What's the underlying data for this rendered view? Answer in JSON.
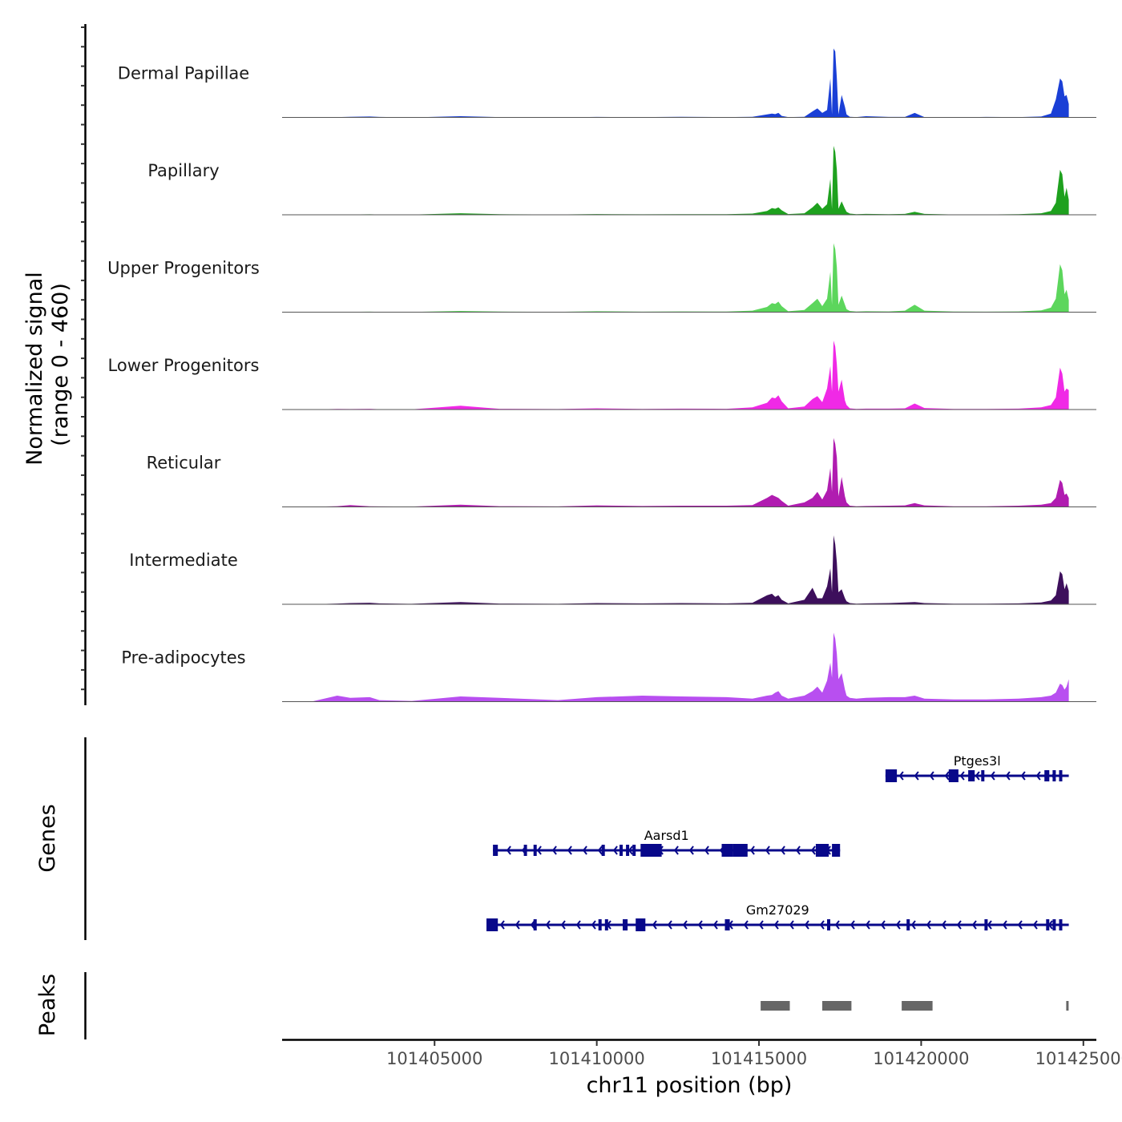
{
  "chart_data": {
    "type": "area",
    "title": "",
    "chromosome": "chr11",
    "xlabel": "chr11 position (bp)",
    "ylabel": "Normalized signal",
    "ylabel_range": "(range 0 - 460)",
    "ylim": [
      0,
      460
    ],
    "xlim": [
      101400300,
      101425400
    ],
    "x_ticks": [
      101405000,
      101410000,
      101415000,
      101420000,
      101425000
    ],
    "x_tick_labels": [
      "101405000",
      "101410000",
      "101415000",
      "101420000",
      "101425000"
    ],
    "coverage_x": [
      101401200,
      101402000,
      101402400,
      101403000,
      101403300,
      101404300,
      101405800,
      101407000,
      101408800,
      101410000,
      101411400,
      101412600,
      101414000,
      101414800,
      101415250,
      101415400,
      101415500,
      101415600,
      101415700,
      101415900,
      101416400,
      101416650,
      101416800,
      101416950,
      101417100,
      101417200,
      101417250,
      101417300,
      101417350,
      101417400,
      101417450,
      101417550,
      101417650,
      101417700,
      101417800,
      101418000,
      101418300,
      101419000,
      101419500,
      101419800,
      101420100,
      101421000,
      101422000,
      101423000,
      101423700,
      101424000,
      101424150,
      101424280,
      101424350,
      101424420,
      101424480,
      101424550
    ],
    "series": [
      {
        "name": "Dermal Papillae",
        "color": "#1a3fd6",
        "values": [
          0,
          2,
          4,
          6,
          3,
          0,
          8,
          2,
          0,
          3,
          2,
          4,
          2,
          4,
          20,
          25,
          22,
          30,
          10,
          2,
          4,
          40,
          60,
          30,
          50,
          260,
          20,
          460,
          440,
          260,
          20,
          150,
          70,
          20,
          4,
          2,
          8,
          3,
          3,
          30,
          2,
          0,
          3,
          2,
          6,
          25,
          120,
          260,
          240,
          140,
          150,
          90
        ]
      },
      {
        "name": "Papillary",
        "color": "#1ea11e",
        "values": [
          0,
          1,
          2,
          3,
          2,
          1,
          10,
          4,
          2,
          5,
          3,
          4,
          4,
          8,
          25,
          45,
          40,
          50,
          30,
          5,
          10,
          50,
          80,
          40,
          70,
          240,
          40,
          460,
          420,
          300,
          40,
          90,
          40,
          20,
          8,
          4,
          6,
          4,
          6,
          20,
          6,
          2,
          2,
          4,
          10,
          25,
          80,
          300,
          270,
          120,
          180,
          100
        ]
      },
      {
        "name": "Upper Progenitors",
        "color": "#5cd65c",
        "values": [
          0,
          1,
          2,
          3,
          2,
          1,
          8,
          4,
          2,
          6,
          3,
          5,
          4,
          10,
          35,
          60,
          55,
          70,
          40,
          6,
          15,
          60,
          90,
          40,
          90,
          270,
          50,
          460,
          420,
          300,
          50,
          110,
          50,
          20,
          8,
          4,
          6,
          5,
          10,
          50,
          10,
          4,
          3,
          5,
          12,
          30,
          90,
          320,
          280,
          120,
          150,
          80
        ]
      },
      {
        "name": "Lower Progenitors",
        "color": "#f029e6",
        "values": [
          0,
          4,
          3,
          5,
          2,
          1,
          25,
          5,
          3,
          8,
          4,
          6,
          5,
          15,
          45,
          80,
          75,
          95,
          55,
          8,
          20,
          70,
          90,
          50,
          140,
          290,
          120,
          460,
          420,
          300,
          120,
          200,
          60,
          30,
          8,
          4,
          6,
          6,
          8,
          40,
          10,
          4,
          4,
          6,
          15,
          30,
          80,
          280,
          240,
          120,
          140,
          130
        ]
      },
      {
        "name": "Reticular",
        "color": "#b01cb0",
        "values": [
          0,
          5,
          12,
          4,
          3,
          2,
          15,
          5,
          3,
          10,
          6,
          8,
          8,
          12,
          60,
          80,
          70,
          60,
          40,
          8,
          30,
          60,
          100,
          50,
          110,
          260,
          100,
          460,
          420,
          330,
          70,
          200,
          70,
          30,
          8,
          4,
          6,
          8,
          10,
          25,
          10,
          4,
          4,
          8,
          15,
          25,
          60,
          180,
          160,
          80,
          90,
          60
        ]
      },
      {
        "name": "Intermediate",
        "color": "#3d0f5c",
        "values": [
          0,
          5,
          8,
          10,
          6,
          3,
          15,
          5,
          3,
          8,
          6,
          8,
          6,
          10,
          60,
          70,
          50,
          60,
          30,
          6,
          30,
          110,
          40,
          40,
          120,
          240,
          80,
          460,
          400,
          280,
          80,
          100,
          40,
          20,
          8,
          4,
          6,
          8,
          12,
          15,
          8,
          4,
          4,
          6,
          12,
          25,
          60,
          220,
          200,
          100,
          140,
          90
        ]
      },
      {
        "name": "Pre-adipocytes",
        "color": "#b84ff0",
        "values": [
          0,
          40,
          25,
          30,
          10,
          5,
          35,
          25,
          10,
          30,
          40,
          35,
          30,
          20,
          40,
          45,
          60,
          70,
          40,
          20,
          40,
          70,
          100,
          60,
          140,
          260,
          160,
          460,
          420,
          320,
          150,
          190,
          80,
          40,
          25,
          20,
          25,
          30,
          30,
          40,
          20,
          15,
          15,
          20,
          30,
          40,
          60,
          120,
          110,
          80,
          100,
          150
        ]
      }
    ],
    "genes": {
      "color": "#08088a",
      "items": [
        {
          "name": "Ptges3l",
          "start": 101418900,
          "end": 101424550,
          "exons": [
            [
              101418900,
              101419250
            ],
            [
              101420850,
              101421150
            ],
            [
              101421450,
              101421650
            ],
            [
              101421850,
              101421950
            ],
            [
              101423800,
              101423950
            ],
            [
              101424050,
              101424150
            ],
            [
              101424250,
              101424350
            ]
          ]
        },
        {
          "name": "Aarsd1",
          "start": 101406800,
          "end": 101417500,
          "exons": [
            [
              101406800,
              101406950
            ],
            [
              101407750,
              101407850
            ],
            [
              101408050,
              101408150
            ],
            [
              101410150,
              101410250
            ],
            [
              101410700,
              101410800
            ],
            [
              101410900,
              101411000
            ],
            [
              101411100,
              101411200
            ],
            [
              101411350,
              101412000
            ],
            [
              101413850,
              101414200
            ],
            [
              101414200,
              101414650
            ],
            [
              101416750,
              101417150
            ],
            [
              101417250,
              101417500
            ]
          ]
        },
        {
          "name": "Gm27029",
          "start": 101406600,
          "end": 101424550,
          "exons": [
            [
              101406600,
              101406950
            ],
            [
              101408050,
              101408150
            ],
            [
              101410050,
              101410150
            ],
            [
              101410250,
              101410350
            ],
            [
              101410800,
              101410950
            ],
            [
              101411200,
              101411500
            ],
            [
              101413950,
              101414100
            ],
            [
              101417100,
              101417200
            ],
            [
              101419550,
              101419650
            ],
            [
              101421950,
              101422050
            ],
            [
              101423850,
              101423950
            ],
            [
              101424050,
              101424150
            ],
            [
              101424250,
              101424350
            ]
          ]
        }
      ]
    },
    "peaks": {
      "color": "#666666",
      "ranges": [
        [
          101415050,
          101415950
        ],
        [
          101416950,
          101417850
        ],
        [
          101419400,
          101420350
        ],
        [
          101424470,
          101424530
        ]
      ]
    },
    "track_titles": {
      "genes": "Genes",
      "peaks": "Peaks"
    }
  }
}
